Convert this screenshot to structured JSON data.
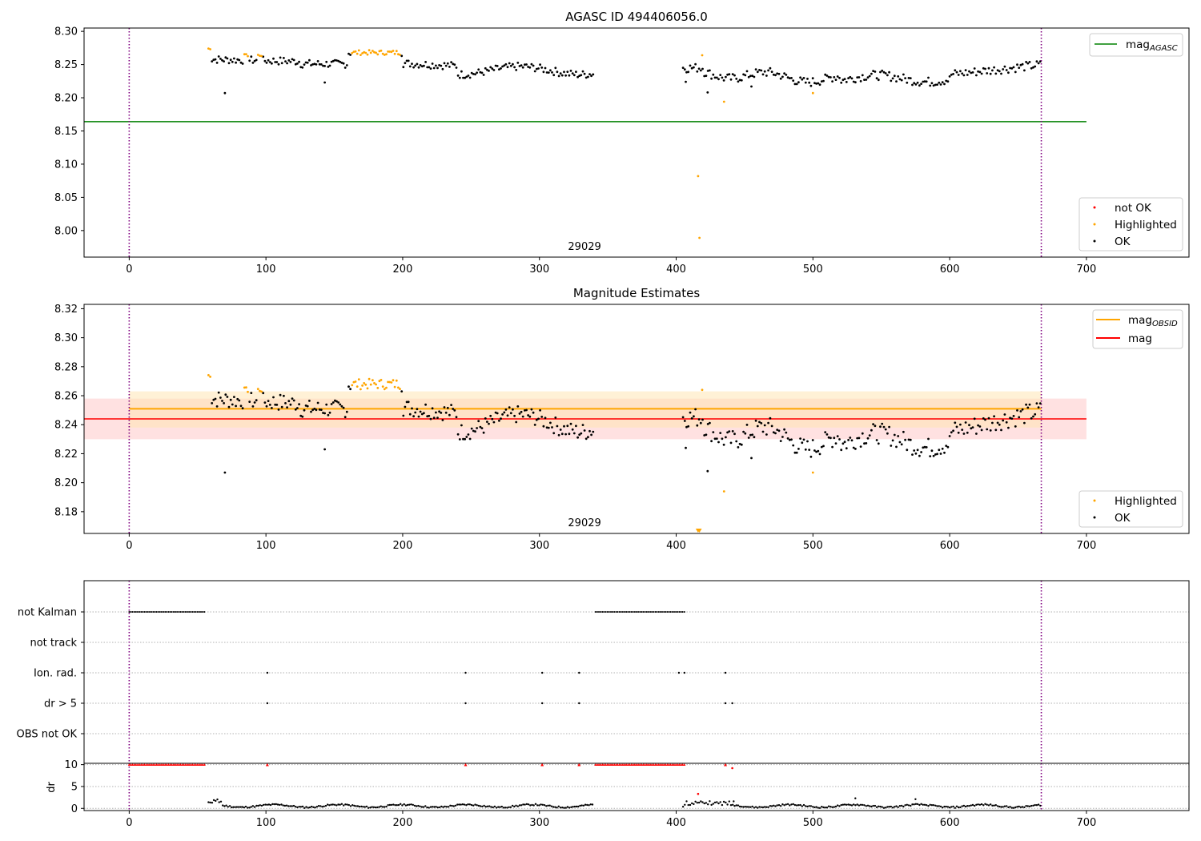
{
  "colors": {
    "ok": "#000000",
    "highlighted": "#ffa500",
    "not_ok": "#ff0000",
    "mag_agasc": "#008000",
    "mag_obsid": "#ffa500",
    "mag": "#ff0000",
    "obs_boundary": "#800080",
    "band_obsid": "#ffe5b4",
    "band_mag": "#ffc8c8"
  },
  "chart_data": [
    {
      "type": "scatter",
      "title": "AGASC ID 494406056.0",
      "xlim": [
        -33,
        775
      ],
      "ylim": [
        7.96,
        8.305
      ],
      "xticks": [
        0,
        100,
        200,
        300,
        400,
        500,
        600,
        700
      ],
      "yticks": [
        8.0,
        8.05,
        8.1,
        8.15,
        8.2,
        8.25,
        8.3
      ],
      "ytick_labels": [
        "8.00",
        "8.05",
        "8.10",
        "8.15",
        "8.20",
        "8.25",
        "8.30"
      ],
      "hlines": [
        {
          "name": "mag",
          "sub": "AGASC",
          "y": 8.164,
          "xmin": -33,
          "xmax": 700,
          "color_key": "mag_agasc"
        }
      ],
      "vlines": [
        0,
        667
      ],
      "obsid_label": {
        "text": "29029",
        "x": 333
      },
      "legend_lines": [
        {
          "name": "mag",
          "sub": "AGASC",
          "color_key": "mag_agasc"
        }
      ],
      "legend_points": [
        {
          "name": "not OK",
          "color_key": "not_ok"
        },
        {
          "name": "Highlighted",
          "color_key": "highlighted"
        },
        {
          "name": "OK",
          "color_key": "ok"
        }
      ],
      "series": [
        {
          "name": "OK",
          "kind": "trend",
          "x_range": [
            58,
            667
          ],
          "seed": 1
        },
        {
          "name": "Highlighted",
          "kind": "highlight",
          "seed": 2
        },
        {
          "name": "outliers",
          "points": [
            [
              70,
              8.207
            ],
            [
              143,
              8.223
            ],
            [
              407,
              8.224
            ],
            [
              416,
              8.082
            ],
            [
              417,
              7.989
            ],
            [
              419,
              8.264
            ],
            [
              423,
              8.208
            ],
            [
              435,
              8.194
            ],
            [
              455,
              8.217
            ],
            [
              500,
              8.207
            ]
          ]
        }
      ]
    },
    {
      "type": "scatter",
      "title": "Magnitude Estimates",
      "xlim": [
        -33,
        775
      ],
      "ylim": [
        8.165,
        8.323
      ],
      "xticks": [
        0,
        100,
        200,
        300,
        400,
        500,
        600,
        700
      ],
      "yticks": [
        8.18,
        8.2,
        8.22,
        8.24,
        8.26,
        8.28,
        8.3,
        8.32
      ],
      "ytick_labels": [
        "8.18",
        "8.20",
        "8.22",
        "8.24",
        "8.26",
        "8.28",
        "8.30",
        "8.32"
      ],
      "hlines": [
        {
          "name": "mag",
          "sub": "OBSID",
          "y": 8.251,
          "xmin": 0,
          "xmax": 667,
          "color_key": "mag_obsid",
          "band": [
            8.238,
            8.263
          ],
          "band_color_key": "band_obsid"
        },
        {
          "name": "mag",
          "sub": "",
          "y": 8.244,
          "xmin": -33,
          "xmax": 700,
          "color_key": "mag",
          "band": [
            8.23,
            8.258
          ],
          "band_color_key": "band_mag"
        }
      ],
      "vlines": [
        0,
        667
      ],
      "obsid_label": {
        "text": "29029",
        "x": 333
      },
      "legend_lines": [
        {
          "name": "mag",
          "sub": "OBSID",
          "color_key": "mag_obsid"
        },
        {
          "name": "mag",
          "sub": "",
          "color_key": "mag"
        }
      ],
      "legend_points": [
        {
          "name": "Highlighted",
          "color_key": "highlighted"
        },
        {
          "name": "OK",
          "color_key": "ok"
        }
      ]
    },
    {
      "type": "flags",
      "xlim": [
        -33,
        775
      ],
      "xticks": [
        0,
        100,
        200,
        300,
        400,
        500,
        600,
        700
      ],
      "categories": [
        "not Kalman",
        "not track",
        "Ion. rad.",
        "dr > 5",
        "OBS not OK"
      ],
      "flag_points": {
        "not Kalman": {
          "ranges": [
            [
              0,
              56
            ],
            [
              341,
              406
            ]
          ],
          "points": []
        },
        "not track": {
          "ranges": [],
          "points": []
        },
        "Ion. rad.": {
          "ranges": [],
          "points": [
            101,
            246,
            302,
            329,
            402,
            406,
            436
          ]
        },
        "dr > 5": {
          "ranges": [],
          "points": [
            101,
            246,
            302,
            329,
            436,
            441
          ]
        },
        "OBS not OK": {
          "ranges": [],
          "points": []
        }
      },
      "vlines": [
        0,
        667
      ]
    },
    {
      "type": "scatter",
      "ylabel": "dr",
      "xlim": [
        -33,
        775
      ],
      "ylim": [
        -0.5,
        10.3
      ],
      "yticks": [
        0,
        5,
        10
      ],
      "ytick_labels": [
        "0",
        "5",
        "10"
      ],
      "xticks": [
        0,
        100,
        200,
        300,
        400,
        500,
        600,
        700
      ],
      "clipped_value": 10,
      "vlines": [
        0,
        667
      ]
    }
  ]
}
